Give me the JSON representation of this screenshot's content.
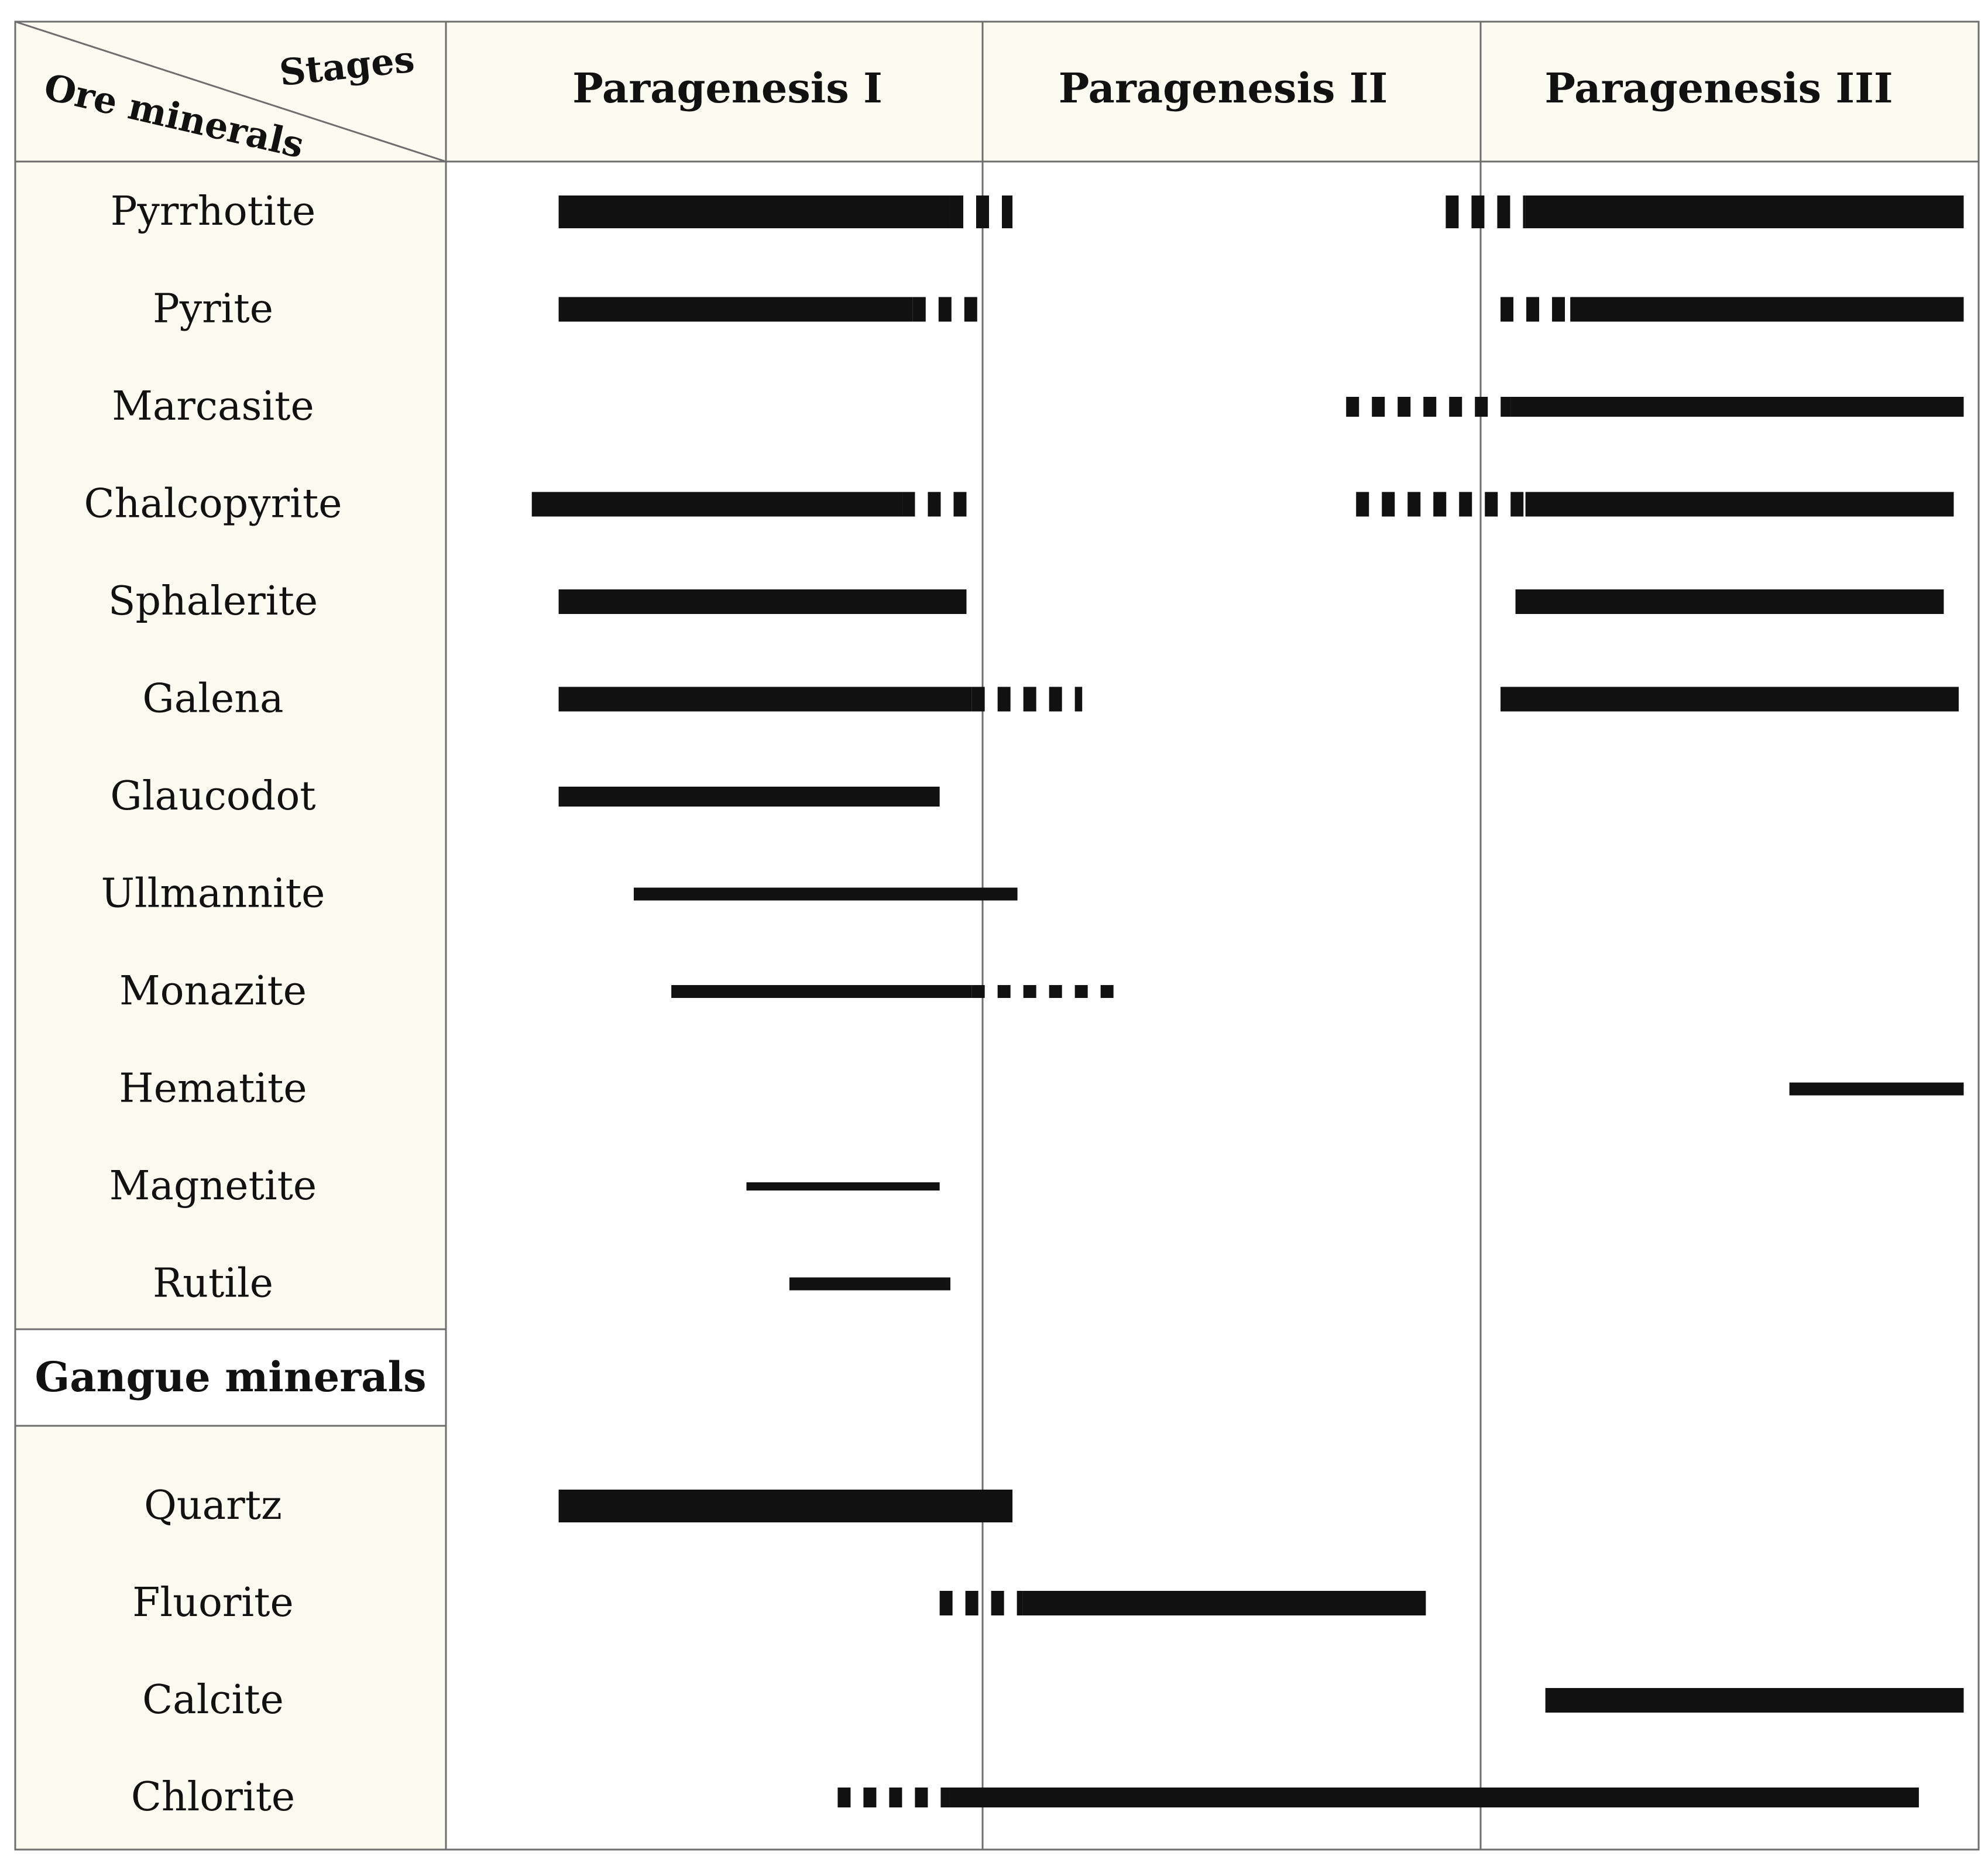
{
  "colors": {
    "bar": "#111111",
    "line": "#6e6e6e",
    "header_fill": "#fcfbf1",
    "label_fill": "#fcfbf1",
    "background": "#ffffff"
  },
  "header": {
    "corner_top": "Stages",
    "corner_bottom": "Ore minerals",
    "stages": [
      "Paragenesis I",
      "Paragenesis II",
      "Paragenesis III"
    ]
  },
  "section_labels": {
    "gangue": "Gangue minerals"
  },
  "chart_data": {
    "type": "paragenetic-sequence",
    "stages": [
      "Paragenesis I",
      "Paragenesis II",
      "Paragenesis III"
    ],
    "x_unit": "stage (0-3)",
    "groups": [
      {
        "name": "Ore minerals",
        "minerals": [
          {
            "name": "Pyrrhotite",
            "weight": "thick",
            "segments": [
              {
                "start": 0.21,
                "end": 0.94,
                "style": "solid"
              },
              {
                "start": 0.94,
                "end": 1.06,
                "style": "dashed"
              },
              {
                "start": 1.93,
                "end": 2.09,
                "style": "dashed"
              },
              {
                "start": 2.09,
                "end": 2.97,
                "style": "solid"
              }
            ]
          },
          {
            "name": "Pyrite",
            "weight": "medium",
            "segments": [
              {
                "start": 0.21,
                "end": 0.87,
                "style": "solid"
              },
              {
                "start": 0.87,
                "end": 1.0,
                "style": "dashed"
              },
              {
                "start": 2.04,
                "end": 2.18,
                "style": "dashed"
              },
              {
                "start": 2.18,
                "end": 2.97,
                "style": "solid"
              }
            ]
          },
          {
            "name": "Marcasite",
            "weight": "medium-thin",
            "segments": [
              {
                "start": 1.73,
                "end": 2.06,
                "style": "dashed"
              },
              {
                "start": 2.06,
                "end": 2.97,
                "style": "solid"
              }
            ]
          },
          {
            "name": "Chalcopyrite",
            "weight": "medium",
            "segments": [
              {
                "start": 0.16,
                "end": 0.85,
                "style": "solid"
              },
              {
                "start": 0.85,
                "end": 0.97,
                "style": "dashed"
              },
              {
                "start": 1.75,
                "end": 2.09,
                "style": "dashed"
              },
              {
                "start": 2.09,
                "end": 2.95,
                "style": "solid"
              }
            ]
          },
          {
            "name": "Sphalerite",
            "weight": "medium",
            "segments": [
              {
                "start": 0.21,
                "end": 0.97,
                "style": "solid"
              },
              {
                "start": 2.07,
                "end": 2.93,
                "style": "solid"
              }
            ]
          },
          {
            "name": "Galena",
            "weight": "medium",
            "segments": [
              {
                "start": 0.21,
                "end": 0.98,
                "style": "solid"
              },
              {
                "start": 0.98,
                "end": 1.2,
                "style": "dashed"
              },
              {
                "start": 2.04,
                "end": 2.96,
                "style": "solid"
              }
            ]
          },
          {
            "name": "Glaucodot",
            "weight": "medium-thin",
            "segments": [
              {
                "start": 0.21,
                "end": 0.92,
                "style": "solid"
              }
            ]
          },
          {
            "name": "Ullmannite",
            "weight": "thin",
            "segments": [
              {
                "start": 0.35,
                "end": 1.07,
                "style": "solid"
              }
            ]
          },
          {
            "name": "Monazite",
            "weight": "thin",
            "segments": [
              {
                "start": 0.42,
                "end": 0.98,
                "style": "solid"
              },
              {
                "start": 0.98,
                "end": 1.28,
                "style": "dashed"
              }
            ]
          },
          {
            "name": "Hematite",
            "weight": "thin",
            "segments": [
              {
                "start": 2.62,
                "end": 2.97,
                "style": "solid"
              }
            ]
          },
          {
            "name": "Magnetite",
            "weight": "very-thin",
            "segments": [
              {
                "start": 0.56,
                "end": 0.92,
                "style": "solid"
              }
            ]
          },
          {
            "name": "Rutile",
            "weight": "thin",
            "segments": [
              {
                "start": 0.64,
                "end": 0.94,
                "style": "solid"
              }
            ]
          }
        ]
      },
      {
        "name": "Gangue minerals",
        "minerals": [
          {
            "name": "Quartz",
            "weight": "thick",
            "segments": [
              {
                "start": 0.21,
                "end": 1.06,
                "style": "solid"
              }
            ]
          },
          {
            "name": "Fluorite",
            "weight": "medium",
            "segments": [
              {
                "start": 0.92,
                "end": 1.08,
                "style": "dashed"
              },
              {
                "start": 1.08,
                "end": 1.89,
                "style": "solid"
              }
            ]
          },
          {
            "name": "Calcite",
            "weight": "medium",
            "segments": [
              {
                "start": 2.13,
                "end": 2.97,
                "style": "solid"
              }
            ]
          },
          {
            "name": "Chlorite",
            "weight": "medium-thin",
            "segments": [
              {
                "start": 0.73,
                "end": 0.94,
                "style": "dashed"
              },
              {
                "start": 0.94,
                "end": 2.88,
                "style": "solid"
              }
            ]
          }
        ]
      }
    ]
  }
}
